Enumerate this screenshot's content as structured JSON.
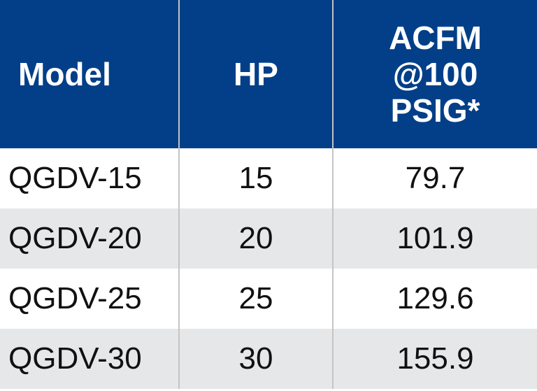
{
  "table": {
    "header": [
      "Model",
      "HP",
      "ACFM\n@100\nPSIG*"
    ],
    "rows": [
      [
        "QGDV-15",
        "15",
        "79.7"
      ],
      [
        "QGDV-20",
        "20",
        "101.9"
      ],
      [
        "QGDV-25",
        "25",
        "129.6"
      ],
      [
        "QGDV-30",
        "30",
        "155.9"
      ]
    ]
  }
}
